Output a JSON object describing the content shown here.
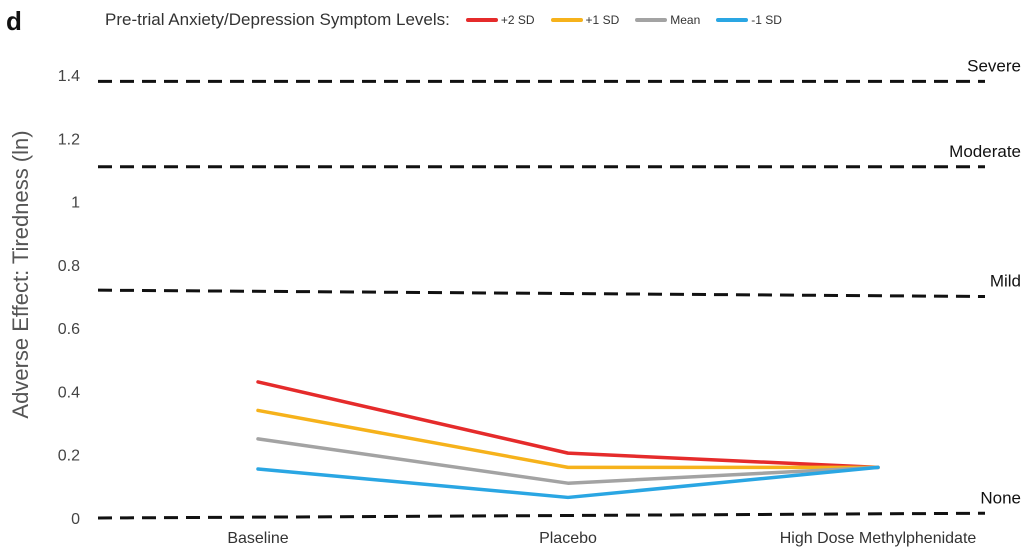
{
  "panel_label": "d",
  "legend": {
    "title": "Pre-trial Anxiety/Depression Symptom Levels:",
    "items": [
      {
        "label": "+2 SD",
        "color": "#e52b2b"
      },
      {
        "label": "+1 SD",
        "color": "#f6b21b"
      },
      {
        "label": "Mean",
        "color": "#a3a3a3"
      },
      {
        "label": "-1 SD",
        "color": "#2aa6e3"
      }
    ]
  },
  "chart_data": {
    "type": "line",
    "title": "",
    "xlabel": "",
    "ylabel": "Adverse Effect: Tiredness (ln)",
    "ylim": [
      0,
      1.4
    ],
    "yticks": [
      "0",
      "0.2",
      "0.4",
      "0.6",
      "0.8",
      "1",
      "1.2",
      "1.4"
    ],
    "ytick_values": [
      0,
      0.2,
      0.4,
      0.6,
      0.8,
      1.0,
      1.2,
      1.4
    ],
    "categories": [
      "Baseline",
      "Placebo",
      "High Dose Methylphenidate"
    ],
    "series": [
      {
        "name": "+2 SD",
        "color": "#e52b2b",
        "values": [
          0.43,
          0.205,
          0.16
        ]
      },
      {
        "name": "+1 SD",
        "color": "#f6b21b",
        "values": [
          0.34,
          0.16,
          0.16
        ]
      },
      {
        "name": "Mean",
        "color": "#a3a3a3",
        "values": [
          0.25,
          0.11,
          0.16
        ]
      },
      {
        "name": "-1 SD",
        "color": "#2aa6e3",
        "values": [
          0.155,
          0.065,
          0.16
        ]
      }
    ],
    "reference_lines": [
      {
        "label": "Severe",
        "y_start": 1.38,
        "y_end": 1.38
      },
      {
        "label": "Moderate",
        "y_start": 1.11,
        "y_end": 1.11
      },
      {
        "label": "Mild",
        "y_start": 0.72,
        "y_end": 0.7
      },
      {
        "label": "None",
        "y_start": 0.0,
        "y_end": 0.015
      }
    ],
    "grid": false,
    "legend_position": "top"
  }
}
